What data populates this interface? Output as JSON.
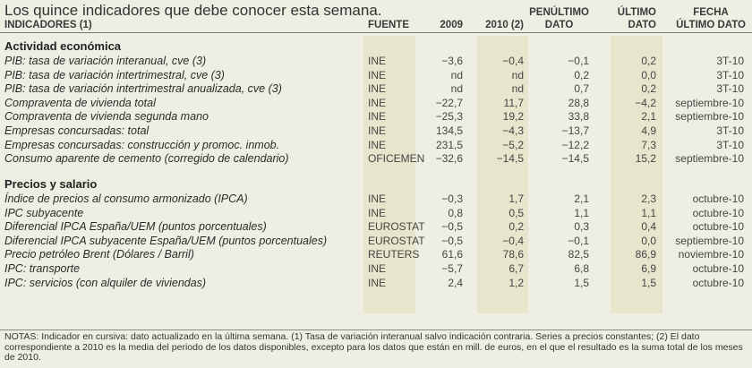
{
  "title": "Los quince indicadores que debe conocer esta semana.",
  "headers": {
    "indicadores": "INDICADORES (1)",
    "fuente": "FUENTE",
    "y2009": "2009",
    "y2010": "2010 (2)",
    "penultimo_1": "PENÚLTIMO",
    "penultimo_2": "DATO",
    "ultimo_1": "ÚLTIMO",
    "ultimo_2": "DATO",
    "fecha_1": "FECHA",
    "fecha_2": "ÚLTIMO DATO"
  },
  "sections": [
    {
      "title": "Actividad económica",
      "rows": [
        [
          "PIB: tasa de variación interanual, cve (3)",
          "INE",
          "−3,6",
          "−0,4",
          "−0,1",
          "0,2",
          "3T-10"
        ],
        [
          "PIB: tasa de variación intertrimestral, cve (3)",
          "INE",
          "nd",
          "nd",
          "0,2",
          "0,0",
          "3T-10"
        ],
        [
          "PIB: tasa de variación intertrimestral anualizada, cve (3)",
          "INE",
          "nd",
          "nd",
          "0,7",
          "0,2",
          "3T-10"
        ],
        [
          "Compraventa de vivienda total",
          "INE",
          "−22,7",
          "11,7",
          "28,8",
          "−4,2",
          "septiembre-10"
        ],
        [
          "Compraventa de vivienda segunda mano",
          "INE",
          "−25,3",
          "19,2",
          "33,8",
          "2,1",
          "septiembre-10"
        ],
        [
          "Empresas concursadas: total",
          "INE",
          "134,5",
          "−4,3",
          "−13,7",
          "4,9",
          "3T-10"
        ],
        [
          "Empresas concursadas: construcción y promoc. inmob.",
          "INE",
          "231,5",
          "−5,2",
          "−12,2",
          "7,3",
          "3T-10"
        ],
        [
          "Consumo aparente de cemento (corregido de calendario)",
          "OFICEMEN",
          "−32,6",
          "−14,5",
          "−14,5",
          "15,2",
          "septiembre-10"
        ]
      ]
    },
    {
      "title": "Precios y salario",
      "rows": [
        [
          "Índice de precios al consumo armonizado (IPCA)",
          "INE",
          "−0,3",
          "1,7",
          "2,1",
          "2,3",
          "octubre-10"
        ],
        [
          "IPC subyacente",
          "INE",
          "0,8",
          "0,5",
          "1,1",
          "1,1",
          "octubre-10"
        ],
        [
          "Diferencial IPCA España/UEM (puntos porcentuales)",
          "EUROSTAT",
          "−0,5",
          "0,2",
          "0,3",
          "0,4",
          "octubre-10"
        ],
        [
          "Diferencial IPCA subyacente España/UEM (puntos porcentuales)",
          "EUROSTAT",
          "−0,5",
          "−0,4",
          "−0,1",
          "0,0",
          "septiembre-10"
        ],
        [
          "Precio petróleo Brent (Dólares / Barril)",
          "REUTERS",
          "61,6",
          "78,6",
          "82,5",
          "86,9",
          "noviembre-10"
        ],
        [
          "IPC: transporte",
          "INE",
          "−5,7",
          "6,7",
          "6,8",
          "6,9",
          "octubre-10"
        ],
        [
          "IPC: servicios (con alquiler de viviendas)",
          "INE",
          "2,4",
          "1,2",
          "1,5",
          "1,5",
          "octubre-10"
        ]
      ]
    }
  ],
  "notes": "NOTAS: Indicador en cursiva: dato actualizado en la última semana. (1) Tasa de variación interanual salvo indicación contraria. Series a precios constantes; (2) El dato correspondiente a 2010 es la media del periodo de los datos disponibles, excepto para los datos que están en mill. de euros, en el que el resultado es la suma total de los meses de 2010."
}
